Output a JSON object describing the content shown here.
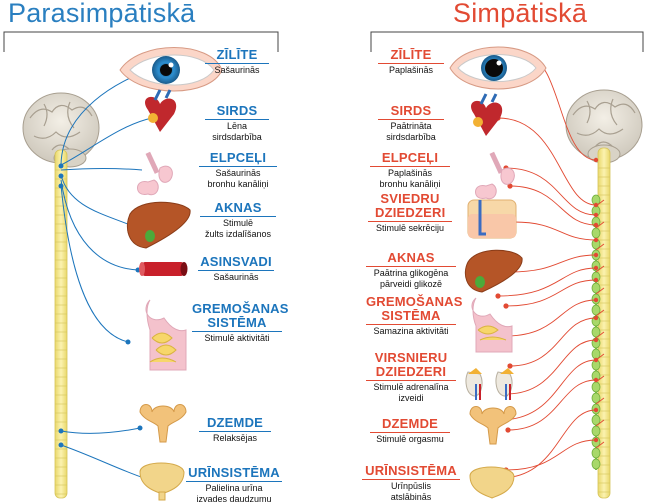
{
  "titles": {
    "parasympathetic": "Parasimpātiskā",
    "sympathetic": "Simpātiskā"
  },
  "colors": {
    "parasympathetic": "#1c75bc",
    "sympathetic": "#e24a33",
    "spinal_cord": "#f7e98a",
    "ganglia": "#a8d86a"
  },
  "parasympathetic": [
    {
      "name": "ZĪLĪTE",
      "lines": [
        "Sašaurinās"
      ]
    },
    {
      "name": "SIRDS",
      "lines": [
        "Lēna",
        "sirdsdarbība"
      ]
    },
    {
      "name": "ELPCEĻI",
      "lines": [
        "Sašaurinās",
        "bronhu kanāliņi"
      ]
    },
    {
      "name": "AKNAS",
      "lines": [
        "Stimulē",
        "žults izdalīšanos"
      ]
    },
    {
      "name": "ASINSVADI",
      "lines": [
        "Sašaurinās"
      ]
    },
    {
      "name": "GREMOŠANAS SISTĒMA",
      "lines": [
        "Stimulē aktivitāti"
      ]
    },
    {
      "name": "DZEMDE",
      "lines": [
        "Relaksējas"
      ]
    },
    {
      "name": "URĪNSISTĒMA",
      "lines": [
        "Palielina urīna",
        "izvades daudzumu"
      ]
    }
  ],
  "sympathetic": [
    {
      "name": "ZĪLĪTE",
      "lines": [
        "Paplašinās"
      ]
    },
    {
      "name": "SIRDS",
      "lines": [
        "Paātrināta",
        "sirdsdarbība"
      ]
    },
    {
      "name": "ELPCEĻI",
      "lines": [
        "Paplašinās",
        "bronhu kanāliņi"
      ]
    },
    {
      "name": "SVIEDRU DZIEDZERI",
      "lines": [
        "Stimulē sekrēciju"
      ]
    },
    {
      "name": "AKNAS",
      "lines": [
        "Paātrina glikogēna",
        "pārveidi glikozē"
      ]
    },
    {
      "name": "GREMOŠANAS SISTĒMA",
      "lines": [
        "Samazina aktivitāti"
      ]
    },
    {
      "name": "VIRSNIERU DZIEDZERI",
      "lines": [
        "Stimulē adrenalīna",
        "izveidi"
      ]
    },
    {
      "name": "DZEMDE",
      "lines": [
        "Stimulē orgasmu"
      ]
    },
    {
      "name": "URĪNSISTĒMA",
      "lines": [
        "Urīnpūslis",
        "atslābinās"
      ]
    }
  ]
}
